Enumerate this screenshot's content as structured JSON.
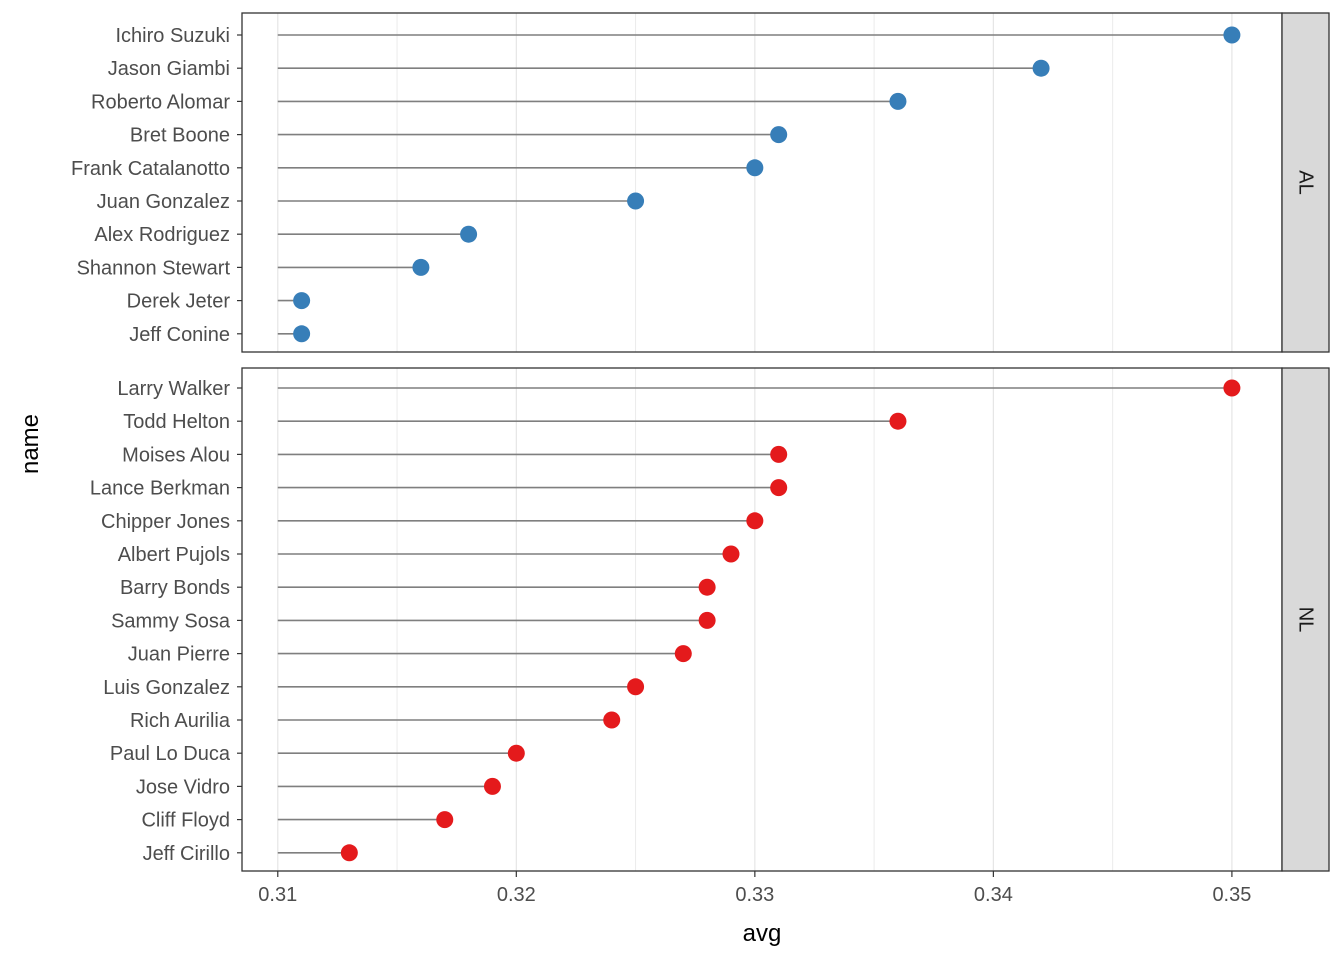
{
  "chart_data": {
    "type": "lollipop",
    "title": "",
    "xlabel": "avg",
    "ylabel": "name",
    "xlim": [
      0.3085,
      0.3521
    ],
    "x_ticks": [
      0.31,
      0.32,
      0.33,
      0.34,
      0.35
    ],
    "x_tick_labels": [
      "0.31",
      "0.32",
      "0.33",
      "0.34",
      "0.35"
    ],
    "grid": true,
    "baseline": 0.31,
    "panels": [
      {
        "facet": "AL",
        "color": "#377eb8",
        "names": [
          "Ichiro Suzuki",
          "Jason Giambi",
          "Roberto Alomar",
          "Bret Boone",
          "Frank Catalanotto",
          "Juan Gonzalez",
          "Alex Rodriguez",
          "Shannon Stewart",
          "Derek Jeter",
          "Jeff Conine"
        ],
        "values": [
          0.35,
          0.342,
          0.336,
          0.331,
          0.33,
          0.325,
          0.318,
          0.316,
          0.311,
          0.311
        ]
      },
      {
        "facet": "NL",
        "color": "#e41a1c",
        "names": [
          "Larry Walker",
          "Todd Helton",
          "Moises Alou",
          "Lance Berkman",
          "Chipper Jones",
          "Albert Pujols",
          "Barry Bonds",
          "Sammy Sosa",
          "Juan Pierre",
          "Luis Gonzalez",
          "Rich Aurilia",
          "Paul Lo Duca",
          "Jose Vidro",
          "Cliff Floyd",
          "Jeff Cirillo"
        ],
        "values": [
          0.35,
          0.336,
          0.331,
          0.331,
          0.33,
          0.329,
          0.328,
          0.328,
          0.327,
          0.325,
          0.324,
          0.32,
          0.319,
          0.317,
          0.313
        ]
      }
    ]
  }
}
